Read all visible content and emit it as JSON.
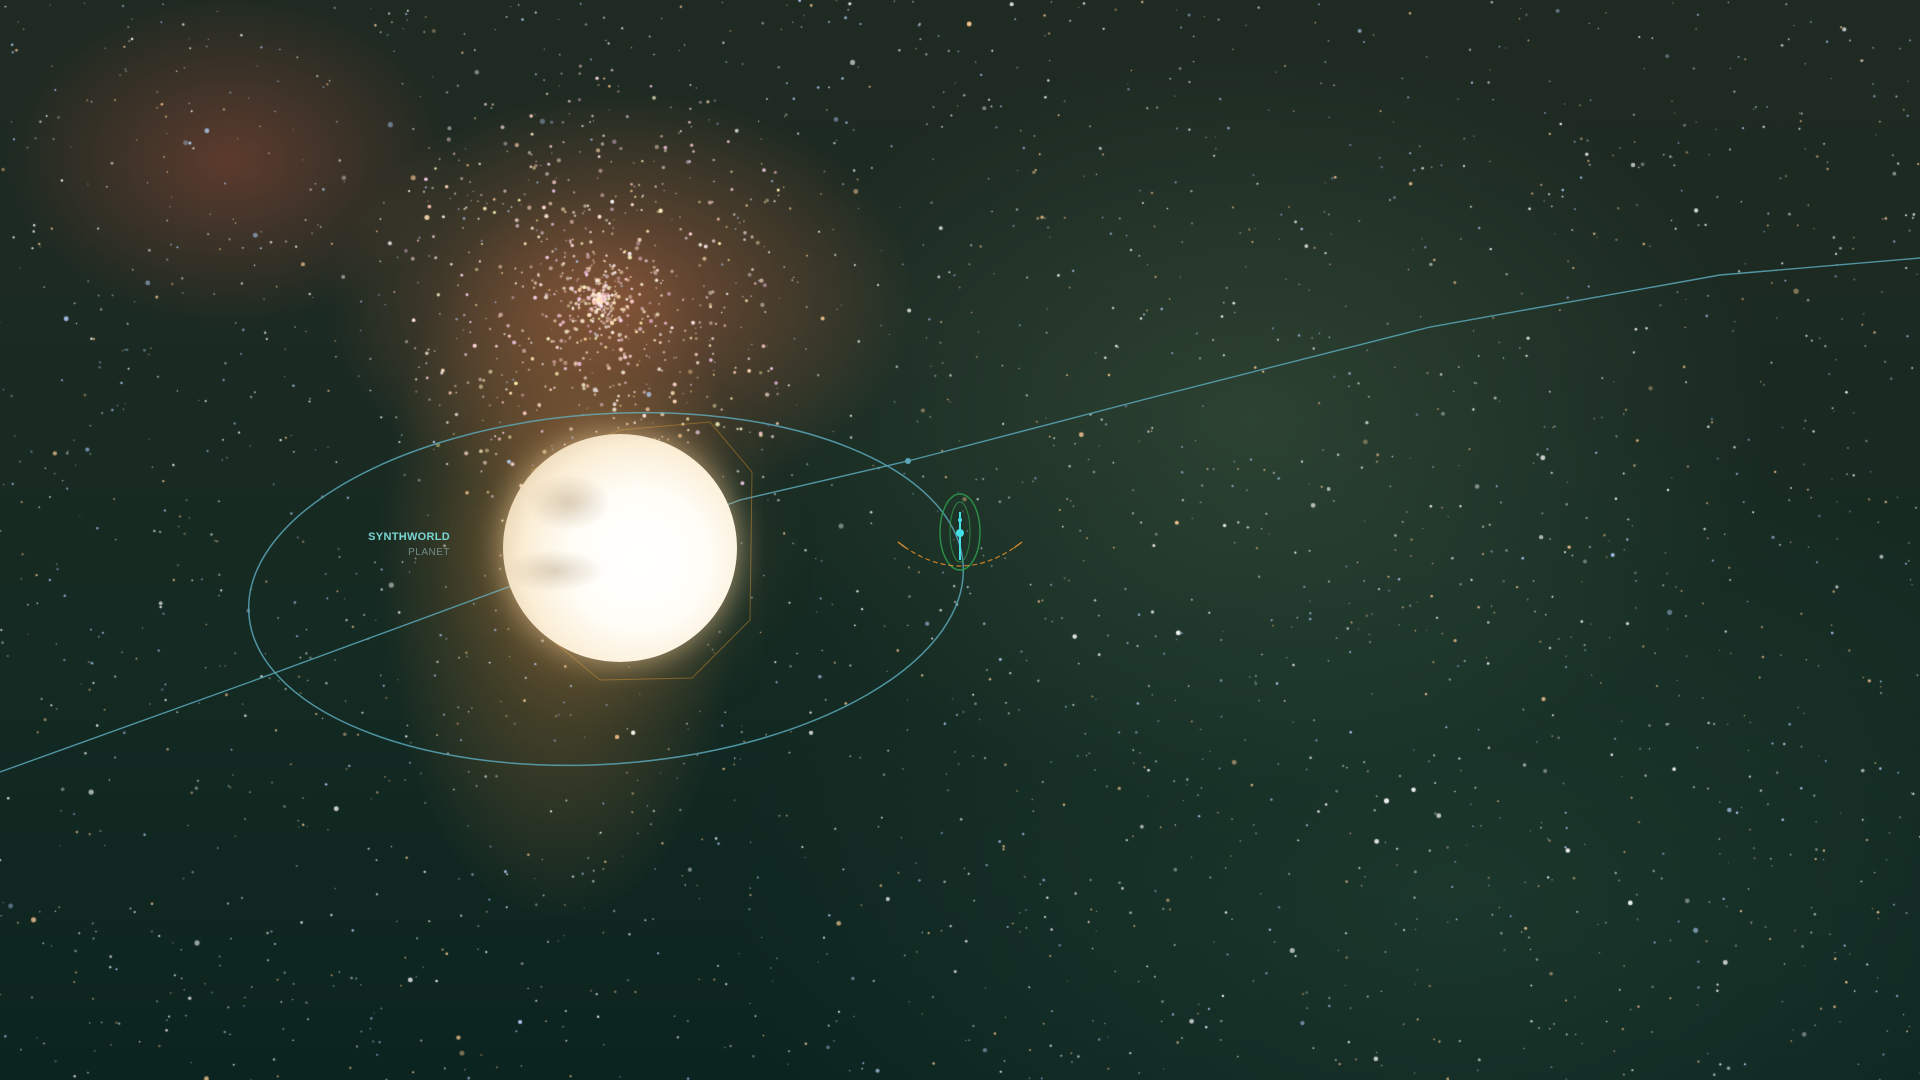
{
  "planet_label": {
    "name": "SYNTHWORLD",
    "type": "PLANET"
  },
  "colors": {
    "orbit": "#5aa7b8",
    "label_name": "#79d6d2",
    "label_type": "#6f8d88",
    "ship_marker": "#43e0e6",
    "ship_bracket": "#2f9a4e",
    "ship_ring": "#d98a2a",
    "planet_target_frame": "#c98a2a"
  },
  "icons": {
    "ship_marker": "ship-marker-icon",
    "target_frame": "target-frame-icon"
  }
}
